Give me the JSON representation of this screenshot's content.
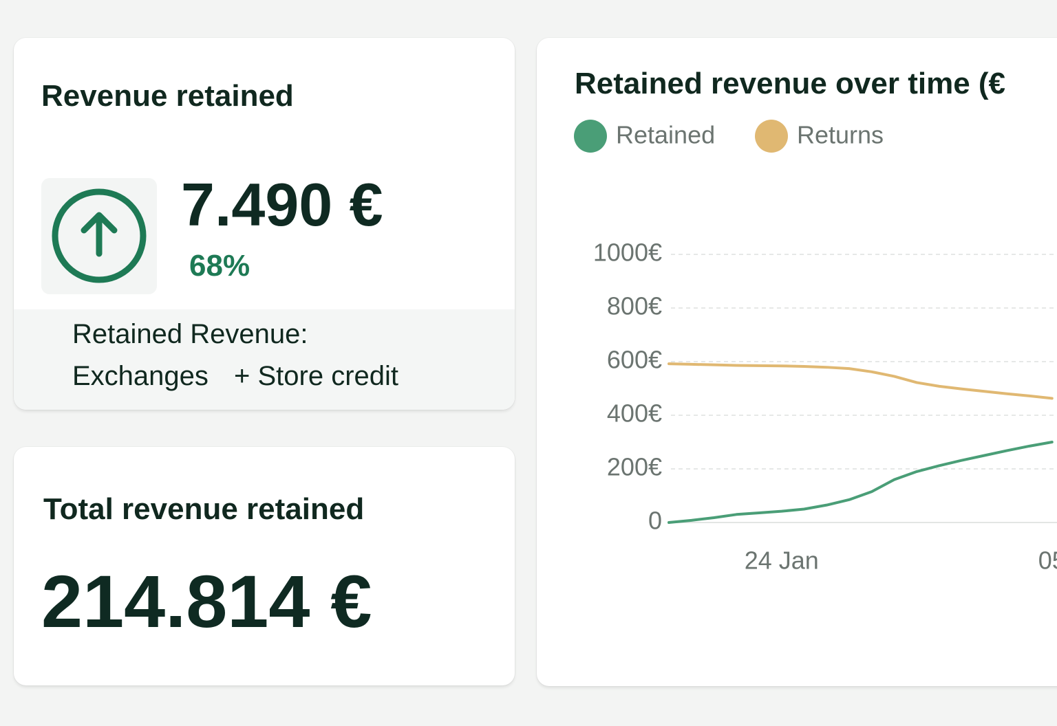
{
  "cards": [
    {
      "title": "Revenue retained",
      "value": "7.490 €",
      "change": "68%",
      "note": [
        "Retained Revenue:",
        "Exchanges",
        "+ Store credit"
      ]
    },
    {
      "title": "Total revenue retained",
      "value": "214.814 €"
    }
  ],
  "chart_data": {
    "type": "line",
    "title": "Retained revenue over time (€",
    "categories": [
      null,
      null,
      null,
      null,
      null,
      "24 Jan",
      null,
      null,
      null,
      null,
      null,
      null,
      null,
      null,
      null,
      null,
      null,
      "05"
    ],
    "series": [
      {
        "name": "Retained",
        "color": "#4a9e77",
        "values": [
          0,
          8,
          18,
          30,
          36,
          42,
          50,
          65,
          85,
          115,
          160,
          190,
          212,
          232,
          250,
          268,
          285,
          300
        ]
      },
      {
        "name": "Returns",
        "color": "#e0b872",
        "values": [
          592,
          590,
          588,
          586,
          585,
          584,
          582,
          579,
          574,
          562,
          545,
          522,
          508,
          498,
          489,
          480,
          472,
          463
        ]
      }
    ],
    "ylim": [
      0,
      1000
    ],
    "yticks": [
      0,
      {
        "value": 200,
        "label": "200€"
      },
      {
        "value": 400,
        "label": "400€"
      },
      {
        "value": 600,
        "label": "600€"
      },
      {
        "value": 800,
        "label": "800€"
      },
      {
        "value": 1000,
        "label": "1000€"
      }
    ],
    "grid": true
  }
}
